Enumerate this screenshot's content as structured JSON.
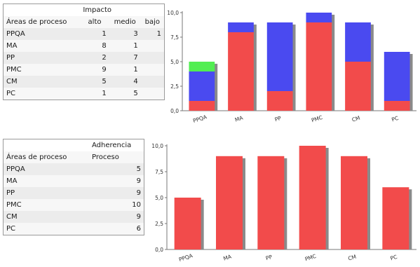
{
  "table1": {
    "group_header": "Impacto",
    "columns": [
      "Áreas de proceso",
      "alto",
      "medio",
      "bajo"
    ],
    "rows": [
      {
        "area": "PPQA",
        "alto": "1",
        "medio": "3",
        "bajo": "1"
      },
      {
        "area": "MA",
        "alto": "8",
        "medio": "1",
        "bajo": ""
      },
      {
        "area": "PP",
        "alto": "2",
        "medio": "7",
        "bajo": ""
      },
      {
        "area": "PMC",
        "alto": "9",
        "medio": "1",
        "bajo": ""
      },
      {
        "area": "CM",
        "alto": "5",
        "medio": "4",
        "bajo": ""
      },
      {
        "area": "PC",
        "alto": "1",
        "medio": "5",
        "bajo": ""
      }
    ]
  },
  "table2": {
    "group_header": "Adherencia",
    "columns": [
      "Áreas de proceso",
      "Proceso"
    ],
    "rows": [
      {
        "area": "PPQA",
        "proceso": "5"
      },
      {
        "area": "MA",
        "proceso": "9"
      },
      {
        "area": "PP",
        "proceso": "9"
      },
      {
        "area": "PMC",
        "proceso": "10"
      },
      {
        "area": "CM",
        "proceso": "9"
      },
      {
        "area": "PC",
        "proceso": "6"
      }
    ]
  },
  "colors": {
    "alto": "#f24b4b",
    "medio": "#4a4af0",
    "bajo": "#52ee52",
    "proceso": "#f24b4b",
    "shadow": "#8a8a8a",
    "axis": "#777777",
    "grid": "#d9d9d9"
  },
  "chart_data": [
    {
      "type": "bar",
      "stacked": true,
      "categories": [
        "PPQA",
        "MA",
        "PP",
        "PMC",
        "CM",
        "PC"
      ],
      "series": [
        {
          "name": "alto",
          "values": [
            1,
            8,
            2,
            9,
            5,
            1
          ]
        },
        {
          "name": "medio",
          "values": [
            3,
            1,
            7,
            1,
            4,
            5
          ]
        },
        {
          "name": "bajo",
          "values": [
            1,
            0,
            0,
            0,
            0,
            0
          ]
        }
      ],
      "ylim": [
        0,
        10
      ],
      "yticks": [
        "0,0",
        "2,5",
        "5,0",
        "7,5",
        "10,0"
      ],
      "grid": false,
      "legend": "none"
    },
    {
      "type": "bar",
      "categories": [
        "PPQA",
        "MA",
        "PP",
        "PMC",
        "CM",
        "PC"
      ],
      "series": [
        {
          "name": "Proceso",
          "values": [
            5,
            9,
            9,
            10,
            9,
            6
          ]
        }
      ],
      "ylim": [
        0,
        10
      ],
      "yticks": [
        "0,0",
        "2,5",
        "5,0",
        "7,5",
        "10,0"
      ],
      "grid": false,
      "legend": "none"
    }
  ]
}
